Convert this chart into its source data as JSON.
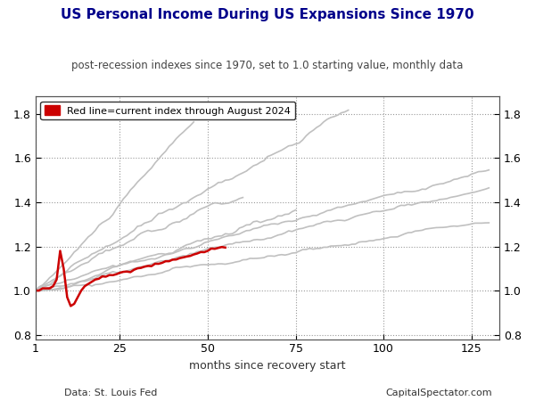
{
  "title": "US Personal Income During US Expansions Since 1970",
  "subtitle": "post-recession indexes since 1970, set to 1.0 starting value, monthly data",
  "xlabel": "months since recovery start",
  "footer_left": "Data: St. Louis Fed",
  "footer_right": "CapitalSpectator.com",
  "legend_label": "Red line=current index through August 2024",
  "xlim": [
    1,
    133
  ],
  "ylim": [
    0.78,
    1.88
  ],
  "xticks": [
    1,
    25,
    50,
    75,
    100,
    125
  ],
  "yticks": [
    0.8,
    1.0,
    1.2,
    1.4,
    1.6,
    1.8
  ],
  "gray_color": "#c0c0c0",
  "red_color": "#cc0000",
  "background_color": "#ffffff",
  "title_color": "#00008B",
  "subtitle_color": "#444444",
  "footer_color": "#333333",
  "title_fontsize": 11,
  "subtitle_fontsize": 8.5,
  "tick_fontsize": 9,
  "xlabel_fontsize": 9,
  "legend_fontsize": 8,
  "footer_fontsize": 8
}
